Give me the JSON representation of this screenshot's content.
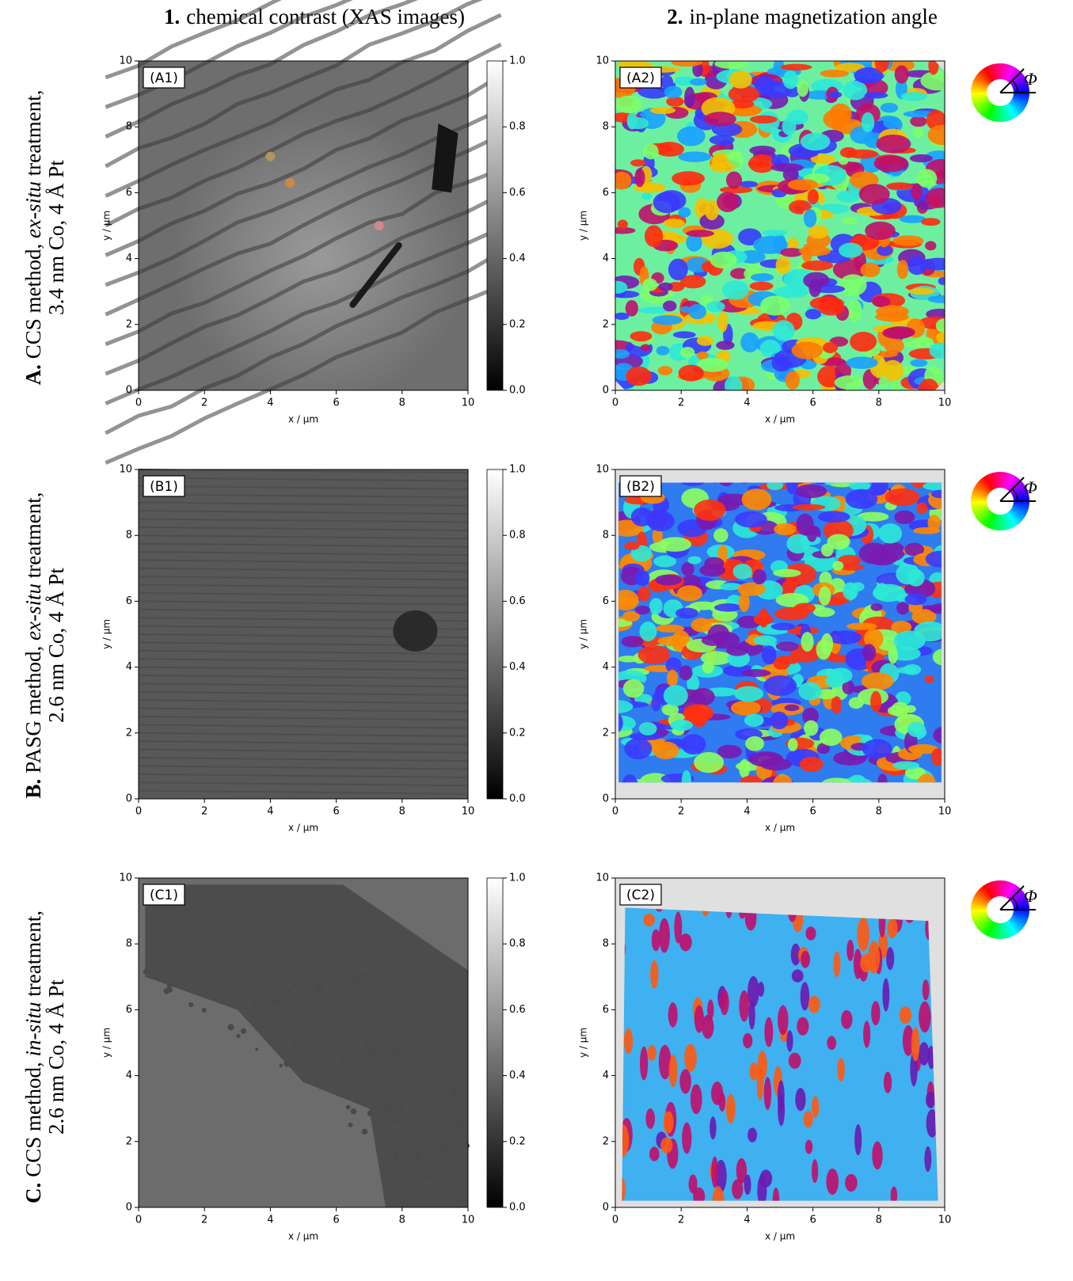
{
  "column_headers": [
    {
      "number": "1.",
      "text": "chemical contrast (XAS images)"
    },
    {
      "number": "2.",
      "text": "in-plane magnetization angle"
    }
  ],
  "row_labels": [
    {
      "letter": "A.",
      "method": "CCS method, ",
      "treatment_kind": "ex-situ",
      "treatment": " treatment,",
      "composition": "3.4 nm Co, 4 Å Pt"
    },
    {
      "letter": "B.",
      "method": "PASG method, ",
      "treatment_kind": "ex-situ",
      "treatment": " treatment,",
      "composition": "2.6 nm Co, 4 Å Pt"
    },
    {
      "letter": "C.",
      "method": "CCS method, ",
      "treatment_kind": "in-situ",
      "treatment": " treatment,",
      "composition": "2.6 nm Co, 4 Å Pt"
    }
  ],
  "angle_symbol": "Φ",
  "chart_data": [
    {
      "type": "image",
      "panel_label": "(A1)",
      "xlabel": "x / µm",
      "ylabel": "y / µm",
      "xlim": [
        0,
        10
      ],
      "ylim": [
        0,
        10
      ],
      "xticks": [
        0,
        2,
        4,
        6,
        8,
        10
      ],
      "yticks": [
        0,
        2,
        4,
        6,
        8,
        10
      ],
      "colormap": "gray",
      "colorbar": {
        "lim": [
          0,
          1
        ],
        "ticks": [
          {
            "value": 0,
            "label": "0.0"
          },
          0.2,
          0.4,
          0.6,
          0.8,
          {
            "value": 1,
            "label": "1.0"
          }
        ]
      }
    },
    {
      "type": "image",
      "panel_label": "(A2)",
      "xlabel": "x / µm",
      "ylabel": "y / µm",
      "xlim": [
        0,
        10
      ],
      "ylim": [
        0,
        10
      ],
      "xticks": [
        0,
        2,
        4,
        6,
        8,
        10
      ],
      "yticks": [
        0,
        2,
        4,
        6,
        8,
        10
      ],
      "colormap": "hsv"
    },
    {
      "type": "image",
      "panel_label": "(B1)",
      "xlabel": "x / µm",
      "ylabel": "y / µm",
      "xlim": [
        0,
        10
      ],
      "ylim": [
        0,
        10
      ],
      "xticks": [
        0,
        2,
        4,
        6,
        8,
        10
      ],
      "yticks": [
        0,
        2,
        4,
        6,
        8,
        10
      ],
      "colormap": "gray",
      "colorbar": {
        "lim": [
          0,
          1
        ],
        "ticks": [
          {
            "value": 0,
            "label": "0.0"
          },
          0.2,
          0.4,
          0.6,
          0.8,
          {
            "value": 1,
            "label": "1.0"
          }
        ]
      }
    },
    {
      "type": "image",
      "panel_label": "(B2)",
      "xlabel": "x / µm",
      "ylabel": "y / µm",
      "xlim": [
        0,
        10
      ],
      "ylim": [
        0,
        10
      ],
      "xticks": [
        0,
        2,
        4,
        6,
        8,
        10
      ],
      "yticks": [
        0,
        2,
        4,
        6,
        8,
        10
      ],
      "colormap": "hsv"
    },
    {
      "type": "image",
      "panel_label": "(C1)",
      "xlabel": "x / µm",
      "ylabel": "y / µm",
      "xlim": [
        0,
        10
      ],
      "ylim": [
        0,
        10
      ],
      "xticks": [
        0,
        2,
        4,
        6,
        8,
        10
      ],
      "yticks": [
        0,
        2,
        4,
        6,
        8,
        10
      ],
      "colormap": "gray",
      "colorbar": {
        "lim": [
          0,
          1
        ],
        "ticks": [
          {
            "value": 0,
            "label": "0.0"
          },
          0.2,
          0.4,
          0.6,
          0.8,
          {
            "value": 1,
            "label": "1.0"
          }
        ]
      }
    },
    {
      "type": "image",
      "panel_label": "(C2)",
      "xlabel": "x / µm",
      "ylabel": "y / µm",
      "xlim": [
        0,
        10
      ],
      "ylim": [
        0,
        10
      ],
      "xticks": [
        0,
        2,
        4,
        6,
        8,
        10
      ],
      "yticks": [
        0,
        2,
        4,
        6,
        8,
        10
      ],
      "colormap": "hsv"
    }
  ]
}
